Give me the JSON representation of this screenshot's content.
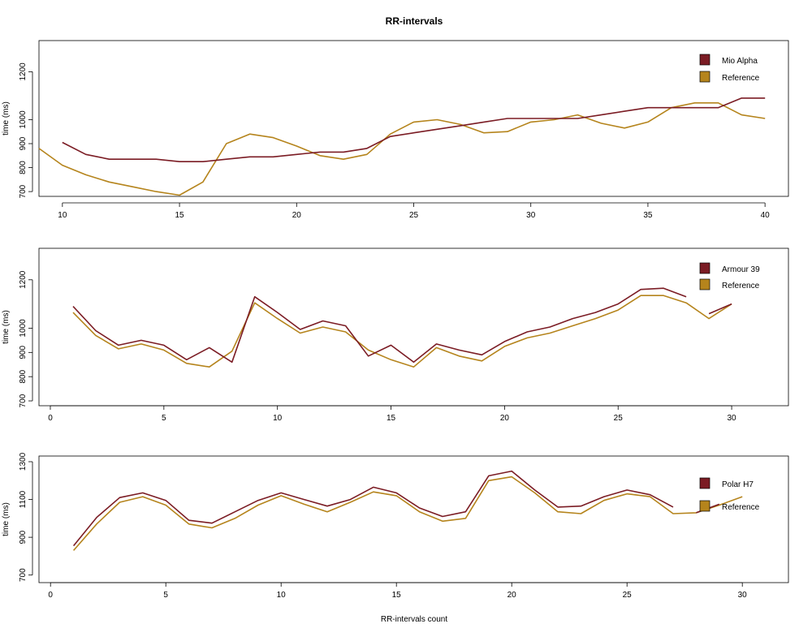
{
  "title": "RR-intervals",
  "xlabel": "RR-intervals count",
  "ylabel": "time (ms)",
  "colors": {
    "device": "#7b1c24",
    "reference": "#b5841c"
  },
  "chart_data": [
    {
      "type": "line",
      "xlim": [
        9,
        41
      ],
      "ylim": [
        680,
        1330
      ],
      "xticks": [
        10,
        15,
        20,
        25,
        30,
        35,
        40
      ],
      "yticks": [
        700,
        800,
        900,
        1000,
        1200
      ],
      "legend_position": "top-right",
      "series": [
        {
          "name": "Mio Alpha",
          "role": "device",
          "x": [
            10,
            11,
            12,
            13,
            14,
            15,
            16,
            17,
            18,
            19,
            20,
            21,
            22,
            23,
            24,
            25,
            26,
            27,
            28,
            29,
            30,
            31,
            32,
            33,
            34,
            35,
            36,
            37,
            38,
            39,
            40
          ],
          "y": [
            905,
            855,
            835,
            835,
            835,
            825,
            825,
            835,
            845,
            845,
            855,
            865,
            865,
            880,
            930,
            945,
            960,
            975,
            990,
            1005,
            1005,
            1005,
            1005,
            1020,
            1035,
            1050,
            1050,
            1050,
            1050,
            1090,
            1090
          ]
        },
        {
          "name": "Reference",
          "role": "reference",
          "x": [
            9,
            10,
            11,
            12,
            13,
            14,
            15,
            16,
            17,
            18,
            19,
            20,
            21,
            22,
            23,
            24,
            25,
            26,
            27,
            28,
            29,
            30,
            31,
            32,
            33,
            34,
            35,
            36,
            37,
            38,
            39,
            40
          ],
          "y": [
            880,
            810,
            770,
            740,
            720,
            700,
            685,
            740,
            900,
            940,
            925,
            890,
            850,
            835,
            855,
            940,
            990,
            1000,
            980,
            945,
            950,
            990,
            1000,
            1020,
            985,
            965,
            990,
            1050,
            1070,
            1070,
            1020,
            1005
          ]
        }
      ]
    },
    {
      "type": "line",
      "xlim": [
        -0.5,
        32.5
      ],
      "ylim": [
        680,
        1330
      ],
      "xticks": [
        0,
        5,
        10,
        15,
        20,
        25,
        30
      ],
      "yticks": [
        700,
        800,
        900,
        1000,
        1200
      ],
      "legend_position": "top-right",
      "series": [
        {
          "name": "Armour 39",
          "role": "device",
          "x": [
            1,
            2,
            3,
            4,
            5,
            6,
            7,
            8,
            9,
            10,
            11,
            12,
            13,
            14,
            15,
            16,
            17,
            18,
            19,
            20,
            21,
            22,
            23,
            24,
            25,
            26,
            27,
            28,
            29,
            30
          ],
          "y": [
            1090,
            990,
            930,
            950,
            930,
            870,
            920,
            860,
            1130,
            1065,
            995,
            1030,
            1010,
            885,
            930,
            860,
            935,
            910,
            890,
            945,
            985,
            1005,
            1040,
            1065,
            1100,
            1160,
            1165,
            1130,
            1060,
            1100
          ],
          "segments": [
            [
              0,
              27
            ],
            [
              28,
              29
            ]
          ]
        },
        {
          "name": "Reference",
          "role": "reference",
          "x": [
            1,
            2,
            3,
            4,
            5,
            6,
            7,
            8,
            9,
            10,
            11,
            12,
            13,
            14,
            15,
            16,
            17,
            18,
            19,
            20,
            21,
            22,
            23,
            24,
            25,
            26,
            27,
            28,
            29,
            30
          ],
          "y": [
            1065,
            970,
            915,
            935,
            910,
            855,
            840,
            905,
            1105,
            1040,
            980,
            1005,
            985,
            910,
            870,
            840,
            920,
            885,
            865,
            925,
            960,
            980,
            1010,
            1040,
            1075,
            1135,
            1135,
            1105,
            1040,
            1100
          ]
        }
      ]
    },
    {
      "type": "line",
      "xlim": [
        -0.5,
        32
      ],
      "ylim": [
        660,
        1330
      ],
      "xticks": [
        0,
        5,
        10,
        15,
        20,
        25,
        30
      ],
      "yticks": [
        700,
        900,
        1100,
        1300
      ],
      "legend_position": "top-right",
      "series": [
        {
          "name": "Polar H7",
          "role": "device",
          "x": [
            1,
            2,
            3,
            4,
            5,
            6,
            7,
            8,
            9,
            10,
            11,
            12,
            13,
            14,
            15,
            16,
            17,
            18,
            19,
            20,
            21,
            22,
            23,
            24,
            25,
            26,
            27,
            28,
            29
          ],
          "y": [
            855,
            1005,
            1110,
            1135,
            1095,
            990,
            975,
            1035,
            1095,
            1135,
            1100,
            1065,
            1100,
            1165,
            1135,
            1055,
            1010,
            1035,
            1225,
            1250,
            1150,
            1060,
            1065,
            1115,
            1150,
            1125,
            1060,
            1030,
            1075
          ],
          "segments": [
            [
              0,
              26
            ],
            [
              27,
              28
            ]
          ]
        },
        {
          "name": "Reference",
          "role": "reference",
          "x": [
            1,
            2,
            3,
            4,
            5,
            6,
            7,
            8,
            9,
            10,
            11,
            12,
            13,
            14,
            15,
            16,
            17,
            18,
            19,
            20,
            21,
            22,
            23,
            24,
            25,
            26,
            27,
            28,
            29,
            30
          ],
          "y": [
            830,
            970,
            1085,
            1115,
            1070,
            970,
            950,
            1000,
            1070,
            1120,
            1075,
            1035,
            1085,
            1140,
            1120,
            1035,
            985,
            1000,
            1200,
            1220,
            1135,
            1035,
            1025,
            1095,
            1130,
            1115,
            1025,
            1030,
            1070,
            1115
          ]
        }
      ]
    }
  ]
}
